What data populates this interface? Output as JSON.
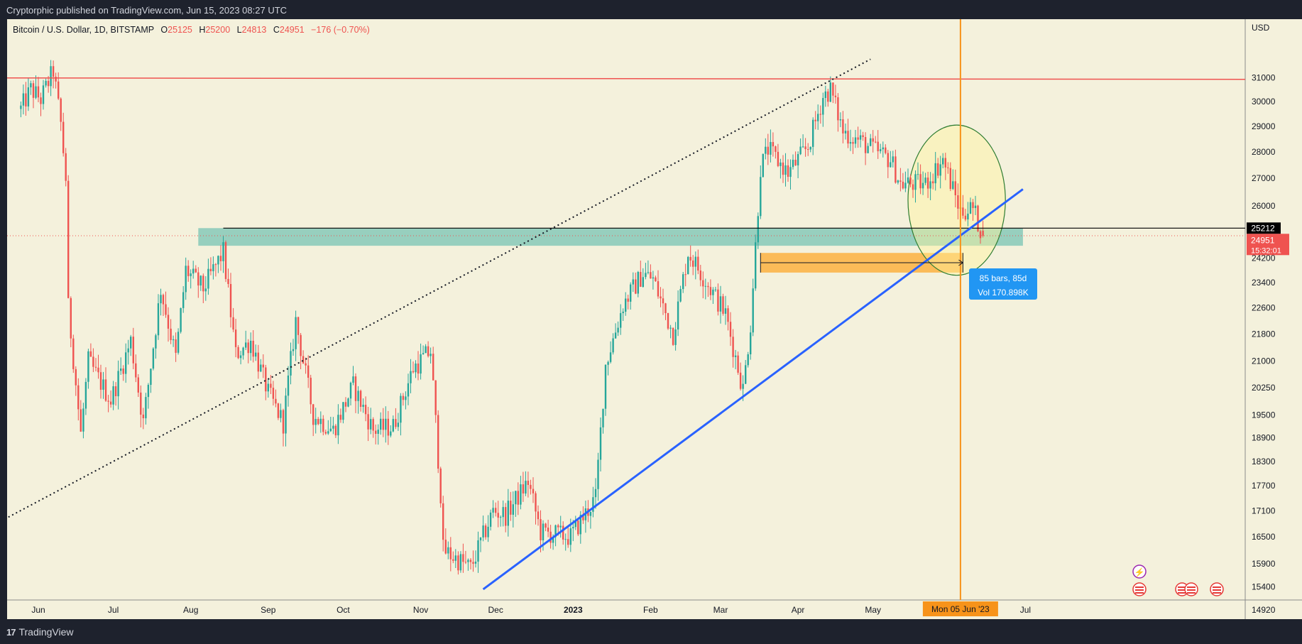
{
  "publish_info": "Cryptorphic published on TradingView.com, Jun 15, 2023 08:27 UTC",
  "footer_brand": "TradingView",
  "colors": {
    "bg": "#f4f1dc",
    "up": "#26a69a",
    "down": "#ef5350",
    "trend": "#2962ff",
    "vline": "#f7931a",
    "resistance": "#ef5350"
  },
  "chart_data": {
    "type": "candlestick",
    "symbol_header": {
      "title": "Bitcoin / U.S. Dollar, 1D, BITSTAMP",
      "o_label": "O",
      "o_value": "25125",
      "h_label": "H",
      "h_value": "25200",
      "l_label": "L",
      "l_value": "24813",
      "c_label": "C",
      "c_value": "24951",
      "change": "−176 (−0.70%)"
    },
    "currency": "USD",
    "price_ticks": [
      "31000",
      "30000",
      "29000",
      "28000",
      "27000",
      "26000",
      "24200",
      "23400",
      "22600",
      "21800",
      "21000",
      "20250",
      "19500",
      "18900",
      "18300",
      "17700",
      "17100",
      "16500",
      "15900",
      "15400",
      "14920"
    ],
    "price_tick_values": [
      31000,
      30000,
      29000,
      28000,
      27000,
      26000,
      24200,
      23400,
      22600,
      21800,
      21000,
      20250,
      19500,
      18900,
      18300,
      17700,
      17100,
      16500,
      15900,
      15400,
      14920
    ],
    "time_ticks": [
      {
        "label": "Jun",
        "date": "2022-06-01",
        "bold": false
      },
      {
        "label": "Jul",
        "date": "2022-07-01",
        "bold": false
      },
      {
        "label": "Aug",
        "date": "2022-08-01",
        "bold": false
      },
      {
        "label": "Sep",
        "date": "2022-09-01",
        "bold": false
      },
      {
        "label": "Oct",
        "date": "2022-10-01",
        "bold": false
      },
      {
        "label": "Nov",
        "date": "2022-11-01",
        "bold": false
      },
      {
        "label": "Dec",
        "date": "2022-12-01",
        "bold": false
      },
      {
        "label": "2023",
        "date": "2023-01-01",
        "bold": true
      },
      {
        "label": "Feb",
        "date": "2023-02-01",
        "bold": false
      },
      {
        "label": "Mar",
        "date": "2023-03-01",
        "bold": false
      },
      {
        "label": "Apr",
        "date": "2023-04-01",
        "bold": false
      },
      {
        "label": "May",
        "date": "2023-05-01",
        "bold": false
      },
      {
        "label": "Jul",
        "date": "2023-07-01",
        "bold": false
      }
    ],
    "anchor_prices": [
      {
        "date": "2022-05-25",
        "price": 29700
      },
      {
        "date": "2022-05-29",
        "price": 30500
      },
      {
        "date": "2022-06-02",
        "price": 30100
      },
      {
        "date": "2022-06-07",
        "price": 31300
      },
      {
        "date": "2022-06-10",
        "price": 29100
      },
      {
        "date": "2022-06-12",
        "price": 27000
      },
      {
        "date": "2022-06-13",
        "price": 22600
      },
      {
        "date": "2022-06-18",
        "price": 19000
      },
      {
        "date": "2022-06-21",
        "price": 21000
      },
      {
        "date": "2022-06-30",
        "price": 19900
      },
      {
        "date": "2022-07-08",
        "price": 21600
      },
      {
        "date": "2022-07-13",
        "price": 19300
      },
      {
        "date": "2022-07-20",
        "price": 23200
      },
      {
        "date": "2022-07-26",
        "price": 21100
      },
      {
        "date": "2022-07-30",
        "price": 23800
      },
      {
        "date": "2022-08-06",
        "price": 23200
      },
      {
        "date": "2022-08-14",
        "price": 24400
      },
      {
        "date": "2022-08-19",
        "price": 21200
      },
      {
        "date": "2022-08-25",
        "price": 21600
      },
      {
        "date": "2022-09-01",
        "price": 20100
      },
      {
        "date": "2022-09-07",
        "price": 19300
      },
      {
        "date": "2022-09-12",
        "price": 22200
      },
      {
        "date": "2022-09-19",
        "price": 19500
      },
      {
        "date": "2022-09-27",
        "price": 19100
      },
      {
        "date": "2022-10-05",
        "price": 20300
      },
      {
        "date": "2022-10-13",
        "price": 19100
      },
      {
        "date": "2022-10-21",
        "price": 19200
      },
      {
        "date": "2022-10-29",
        "price": 20800
      },
      {
        "date": "2022-11-05",
        "price": 21300
      },
      {
        "date": "2022-11-09",
        "price": 17500
      },
      {
        "date": "2022-11-10",
        "price": 16200
      },
      {
        "date": "2022-11-21",
        "price": 15800
      },
      {
        "date": "2022-11-30",
        "price": 17100
      },
      {
        "date": "2022-12-05",
        "price": 17000
      },
      {
        "date": "2022-12-14",
        "price": 17800
      },
      {
        "date": "2022-12-19",
        "price": 16600
      },
      {
        "date": "2022-12-31",
        "price": 16500
      },
      {
        "date": "2023-01-10",
        "price": 17400
      },
      {
        "date": "2023-01-14",
        "price": 20900
      },
      {
        "date": "2023-01-21",
        "price": 22700
      },
      {
        "date": "2023-01-29",
        "price": 23700
      },
      {
        "date": "2023-02-02",
        "price": 23500
      },
      {
        "date": "2023-02-10",
        "price": 21800
      },
      {
        "date": "2023-02-16",
        "price": 24400
      },
      {
        "date": "2023-02-25",
        "price": 23200
      },
      {
        "date": "2023-03-03",
        "price": 22400
      },
      {
        "date": "2023-03-10",
        "price": 20200
      },
      {
        "date": "2023-03-13",
        "price": 22100
      },
      {
        "date": "2023-03-17",
        "price": 27400
      },
      {
        "date": "2023-03-20",
        "price": 28100
      },
      {
        "date": "2023-03-28",
        "price": 27200
      },
      {
        "date": "2023-04-05",
        "price": 28200
      },
      {
        "date": "2023-04-11",
        "price": 30200
      },
      {
        "date": "2023-04-14",
        "price": 30500
      },
      {
        "date": "2023-04-19",
        "price": 28800
      },
      {
        "date": "2023-04-26",
        "price": 28400
      },
      {
        "date": "2023-05-01",
        "price": 28100
      },
      {
        "date": "2023-05-08",
        "price": 27700
      },
      {
        "date": "2023-05-12",
        "price": 26800
      },
      {
        "date": "2023-05-22",
        "price": 26800
      },
      {
        "date": "2023-05-29",
        "price": 27700
      },
      {
        "date": "2023-06-05",
        "price": 25800
      },
      {
        "date": "2023-06-10",
        "price": 25900
      },
      {
        "date": "2023-06-14",
        "price": 24951
      }
    ],
    "drawings": {
      "resistance_line_price": 30960,
      "black_hline_price": 25212,
      "green_zone": {
        "from": "2022-08-04",
        "to": "2023-06-30",
        "price_top": 25212,
        "price_bottom": 24610
      },
      "orange_box": {
        "from": "2023-03-17",
        "to": "2023-06-06",
        "price_top": 24370,
        "price_bottom": 23720
      },
      "blue_trendline": {
        "from_date": "2022-11-26",
        "from_price": 15350,
        "to_date": "2023-06-30",
        "to_price": 26600
      },
      "dotted_trendline": {
        "from_date": "2022-05-20",
        "from_price": 16950,
        "to_date": "2023-04-30",
        "to_price": 31800
      },
      "ellipse": {
        "from": "2023-05-15",
        "to": "2023-06-23",
        "price_top": 29050,
        "price_bottom": 23630
      },
      "vertical_line_date": "2023-06-05"
    },
    "measure_label": {
      "line1": "85 bars, 85d",
      "line2": "Vol 170.898K"
    },
    "price_tags": {
      "hline": "25212",
      "last": "24951",
      "countdown": "15:32:01"
    },
    "date_tag": "Mon 05 Jun '23"
  }
}
